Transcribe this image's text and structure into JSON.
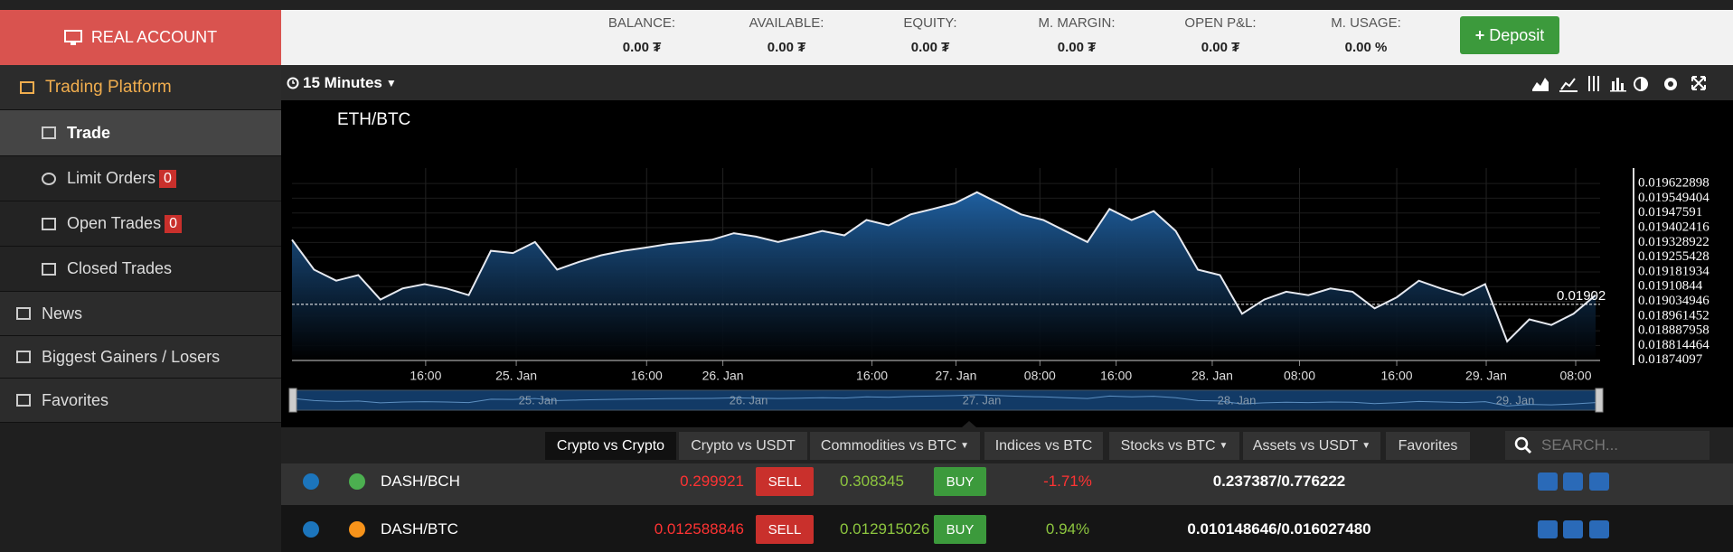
{
  "account": {
    "label": "REAL ACCOUNT"
  },
  "sidebar": {
    "items": [
      {
        "label": "Trading Platform"
      },
      {
        "label": "Trade"
      },
      {
        "label": "Limit Orders",
        "badge": 0
      },
      {
        "label": "Open Trades",
        "badge": 0
      },
      {
        "label": "Closed Trades"
      },
      {
        "label": "News"
      },
      {
        "label": "Biggest Gainers / Losers"
      },
      {
        "label": "Favorites"
      }
    ]
  },
  "header": {
    "stats": [
      {
        "label": "BALANCE:",
        "value": "0.00 ₮"
      },
      {
        "label": "AVAILABLE:",
        "value": "0.00 ₮"
      },
      {
        "label": "EQUITY:",
        "value": "0.00 ₮"
      },
      {
        "label": "M. MARGIN:",
        "value": "0.00 ₮"
      },
      {
        "label": "OPEN P&L:",
        "value": "0.00 ₮"
      },
      {
        "label": "M. USAGE:",
        "value": "0.00 %"
      }
    ],
    "deposit": "Deposit"
  },
  "toolbar": {
    "interval": "15 Minutes"
  },
  "chart_data": {
    "type": "line",
    "title": "ETH/BTC",
    "color": "#e6e9f0",
    "values": [
      0.019342,
      0.019193,
      0.019138,
      0.019166,
      0.019044,
      0.019099,
      0.019121,
      0.019099,
      0.019066,
      0.019287,
      0.019276,
      0.019331,
      0.019193,
      0.019232,
      0.019265,
      0.019287,
      0.019303,
      0.01932,
      0.019331,
      0.019342,
      0.019375,
      0.019358,
      0.019331,
      0.019358,
      0.019386,
      0.019364,
      0.019441,
      0.019414,
      0.019469,
      0.019496,
      0.019524,
      0.019579,
      0.019524,
      0.019469,
      0.019441,
      0.019386,
      0.019331,
      0.019496,
      0.019441,
      0.019485,
      0.019386,
      0.019193,
      0.019166,
      0.018973,
      0.019044,
      0.019083,
      0.019066,
      0.019099,
      0.019083,
      0.019,
      0.019055,
      0.019138,
      0.019099,
      0.019066,
      0.019121,
      0.018835,
      0.018945,
      0.018917,
      0.018973,
      0.019066
    ],
    "xlim": [
      0,
      59
    ],
    "xticks": [
      {
        "value": 6.05,
        "label": "16:00"
      },
      {
        "value": 10.15,
        "label": "25. Jan"
      },
      {
        "value": 16.05,
        "label": "16:00"
      },
      {
        "value": 19.5,
        "label": "26. Jan"
      },
      {
        "value": 26.25,
        "label": "16:00"
      },
      {
        "value": 30.05,
        "label": "27. Jan"
      },
      {
        "value": 33.85,
        "label": "08:00"
      },
      {
        "value": 37.3,
        "label": "16:00"
      },
      {
        "value": 41.65,
        "label": "28. Jan"
      },
      {
        "value": 45.6,
        "label": "08:00"
      },
      {
        "value": 50,
        "label": "16:00"
      },
      {
        "value": 54.05,
        "label": "29. Jan"
      },
      {
        "value": 58.1,
        "label": "08:00"
      }
    ],
    "ylim": [
      0.01874,
      0.0197
    ],
    "yticks": [
      0.019622898,
      0.019549404,
      0.01947591,
      0.019402416,
      0.019328922,
      0.019255428,
      0.019181934,
      0.01910844,
      0.019034946,
      0.018961452,
      0.018887958,
      0.018814464,
      0.01874097
    ],
    "last_price": 0.01902,
    "grid": true,
    "navigator_labels": [
      "25. Jan",
      "26. Jan",
      "27. Jan",
      "28. Jan",
      "29. Jan"
    ]
  },
  "tabs": [
    "Crypto vs Crypto",
    "Crypto vs USDT",
    "Commodities vs BTC",
    "Indices vs BTC",
    "Stocks vs BTC",
    "Assets vs USDT",
    "Favorites"
  ],
  "active_tab": 0,
  "search_placeholder": "SEARCH...",
  "rows": [
    {
      "pair": "DASH/BCH",
      "sell": "0.299921",
      "sell_button": "SELL",
      "buy": "0.308345",
      "buy_button": "BUY",
      "change": "-1.71%",
      "range": "0.237387/0.776222"
    },
    {
      "pair": "DASH/BTC",
      "sell": "0.012588846",
      "sell_button": "SELL",
      "buy": "0.012915026",
      "buy_button": "BUY",
      "change": "0.94%",
      "range": "0.010148646/0.016027480"
    }
  ]
}
